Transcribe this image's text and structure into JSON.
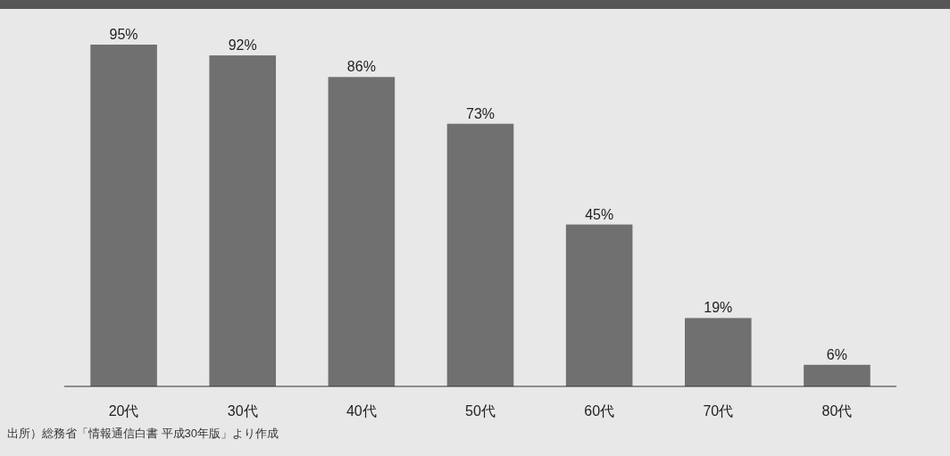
{
  "chart_data": {
    "type": "bar",
    "categories": [
      "20代",
      "30代",
      "40代",
      "50代",
      "60代",
      "70代",
      "80代"
    ],
    "values": [
      95,
      92,
      86,
      73,
      45,
      19,
      6
    ],
    "color": "#707070",
    "value_labels": [
      "95%",
      "92%",
      "86%",
      "73%",
      "45%",
      "19%",
      "6%"
    ],
    "annotations": [
      "出所）総務省「情報通信白書 平成30年版」より作成"
    ],
    "grid": false
  }
}
